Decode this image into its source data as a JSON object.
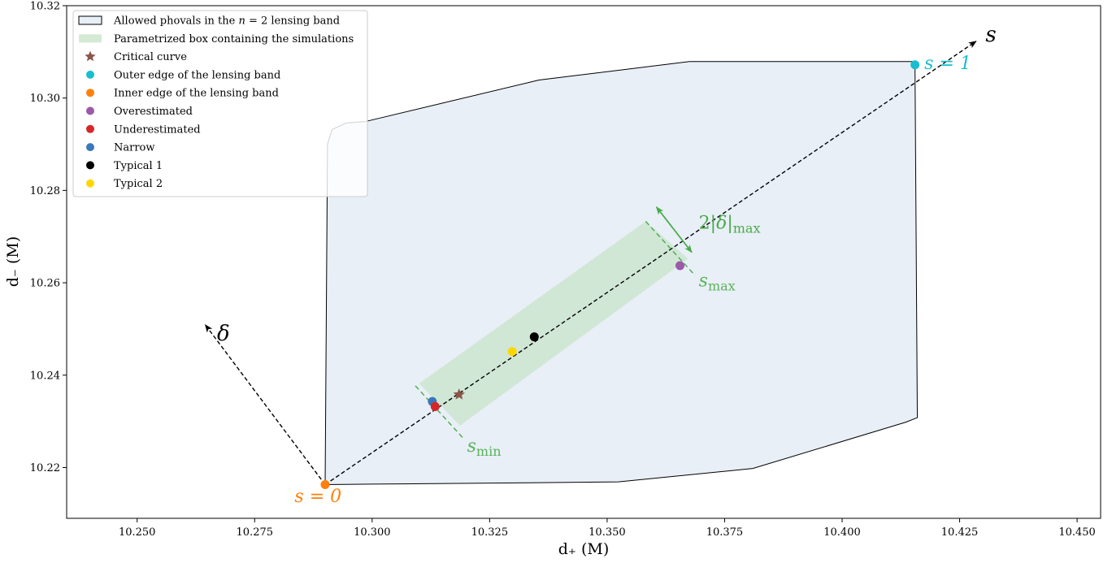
{
  "chart_data": {
    "type": "scatter",
    "xlabel": "d₊ (M)",
    "ylabel": "d₋ (M)",
    "xlim": [
      10.235,
      10.455
    ],
    "ylim": [
      10.209,
      10.32
    ],
    "xticks": [
      10.25,
      10.275,
      10.3,
      10.325,
      10.35,
      10.375,
      10.4,
      10.425,
      10.45
    ],
    "yticks": [
      10.22,
      10.24,
      10.26,
      10.28,
      10.3,
      10.32
    ],
    "xtick_labels": [
      "10.250",
      "10.275",
      "10.300",
      "10.325",
      "10.350",
      "10.375",
      "10.400",
      "10.425",
      "10.450"
    ],
    "ytick_labels": [
      "10.22",
      "10.24",
      "10.26",
      "10.28",
      "10.30",
      "10.32"
    ],
    "grid": false,
    "legend_position": "top-left",
    "legend": [
      {
        "label": "Allowed phovals in the n = 2 lensing band",
        "kind": "patch",
        "color": "#e8eff6",
        "edge": "#000000"
      },
      {
        "label": "Parametrized box containing the simulations",
        "kind": "patch",
        "color": "#d4ead4",
        "edge": "none"
      },
      {
        "label": "Critical curve",
        "kind": "star",
        "color": "#8c564b"
      },
      {
        "label": "Outer edge of the lensing band",
        "kind": "dot",
        "color": "#17becf"
      },
      {
        "label": "Inner edge of the lensing band",
        "kind": "dot",
        "color": "#ff7f0e"
      },
      {
        "label": "Overestimated",
        "kind": "dot",
        "color": "#9b59a8"
      },
      {
        "label": "Underestimated",
        "kind": "dot",
        "color": "#d62728"
      },
      {
        "label": "Narrow",
        "kind": "dot",
        "color": "#3a78b8"
      },
      {
        "label": "Typical 1",
        "kind": "dot",
        "color": "#000000"
      },
      {
        "label": "Typical 2",
        "kind": "dot",
        "color": "#ffd700"
      }
    ],
    "band_polygon": [
      [
        10.29,
        10.2163
      ],
      [
        10.3,
        10.2164
      ],
      [
        10.311,
        10.2165
      ],
      [
        10.3335,
        10.2167
      ],
      [
        10.3525,
        10.2169
      ],
      [
        10.381,
        10.2198
      ],
      [
        10.4135,
        10.2298
      ],
      [
        10.416,
        10.2308
      ],
      [
        10.4155,
        10.3079
      ],
      [
        10.3675,
        10.3079
      ],
      [
        10.3355,
        10.3039
      ],
      [
        10.2985,
        10.2949
      ],
      [
        10.2945,
        10.2946
      ],
      [
        10.2915,
        10.2932
      ],
      [
        10.2905,
        10.29
      ],
      [
        10.29,
        10.2163
      ]
    ],
    "param_box_polygon": [
      [
        10.31,
        10.2382
      ],
      [
        10.3582,
        10.2733
      ],
      [
        10.3672,
        10.2652
      ],
      [
        10.3187,
        10.2291
      ]
    ],
    "s_axis": {
      "from": [
        10.29,
        10.2163
      ],
      "to": [
        10.4285,
        10.3123
      ],
      "label": "s"
    },
    "delta_axis": {
      "from": [
        10.29,
        10.2163
      ],
      "to": [
        10.2645,
        10.2509
      ],
      "label": "δ"
    },
    "s_min_line": {
      "from": [
        10.3092,
        10.2377
      ],
      "to": [
        10.3195,
        10.2262
      ],
      "label": "s_min"
    },
    "s_max_line": {
      "from": [
        10.3582,
        10.2733
      ],
      "to": [
        10.3687,
        10.2616
      ],
      "label": "s_max"
    },
    "delta_arrow": {
      "from": [
        10.3605,
        10.2764
      ],
      "to": [
        10.368,
        10.2666
      ],
      "label": "2|δ|_max"
    },
    "points": [
      {
        "name": "Outer edge of the lensing band",
        "x": 10.4155,
        "y": 10.3072,
        "color": "#17becf",
        "marker": "dot"
      },
      {
        "name": "Inner edge of the lensing band",
        "x": 10.29,
        "y": 10.2163,
        "color": "#ff7f0e",
        "marker": "dot"
      },
      {
        "name": "Overestimated",
        "x": 10.3655,
        "y": 10.2637,
        "color": "#9b59a8",
        "marker": "dot"
      },
      {
        "name": "Typical 1",
        "x": 10.3345,
        "y": 10.2483,
        "color": "#000000",
        "marker": "dot"
      },
      {
        "name": "Typical 2",
        "x": 10.3298,
        "y": 10.2451,
        "color": "#ffd700",
        "marker": "dot"
      },
      {
        "name": "Critical curve",
        "x": 10.3185,
        "y": 10.2358,
        "color": "#8c564b",
        "marker": "star"
      },
      {
        "name": "Narrow",
        "x": 10.3128,
        "y": 10.2343,
        "color": "#3a78b8",
        "marker": "dot"
      },
      {
        "name": "Underestimated",
        "x": 10.3134,
        "y": 10.2332,
        "color": "#d62728",
        "marker": "dot"
      }
    ],
    "annotations": [
      {
        "text": "s",
        "x": 10.4305,
        "y": 10.3123,
        "color": "#000000",
        "size": "large"
      },
      {
        "text": "s = 1",
        "x": 10.4175,
        "y": 10.3063,
        "color": "#17becf",
        "size": "medium"
      },
      {
        "text": "δ",
        "x": 10.267,
        "y": 10.2475,
        "color": "#000000",
        "size": "large"
      },
      {
        "text": "s = 0",
        "x": 10.2835,
        "y": 10.2125,
        "color": "#ff7f0e",
        "size": "medium"
      },
      {
        "text": "2|δ|max",
        "x": 10.3695,
        "y": 10.2717,
        "color": "#4aaa4a",
        "size": "medium"
      },
      {
        "text": "smax",
        "x": 10.3695,
        "y": 10.2592,
        "color": "#5cb35c",
        "size": "medium"
      },
      {
        "text": "smin",
        "x": 10.3202,
        "y": 10.2234,
        "color": "#5cb35c",
        "size": "medium"
      }
    ]
  }
}
